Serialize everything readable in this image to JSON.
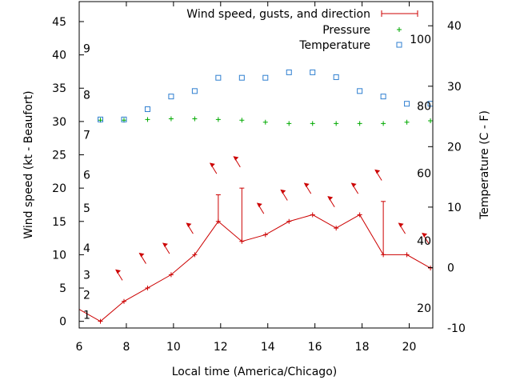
{
  "chart_data": {
    "type": "line",
    "xlabel": "Local time (America/Chicago)",
    "ylabel_left": "Wind speed (kt - Beaufort)",
    "ylabel_right": "Temperature (C - F)",
    "xlim": [
      6,
      21
    ],
    "ylim_left": [
      -1,
      48
    ],
    "ylim_right": [
      -10,
      44
    ],
    "x_ticks": [
      6,
      8,
      10,
      12,
      14,
      16,
      18,
      20
    ],
    "y_ticks_left": [
      0,
      5,
      10,
      15,
      20,
      25,
      30,
      35,
      40,
      45
    ],
    "y_ticks_right": [
      -10,
      0,
      10,
      20,
      30,
      40
    ],
    "beaufort_labels": [
      {
        "label": "1",
        "kt": 1
      },
      {
        "label": "2",
        "kt": 4
      },
      {
        "label": "3",
        "kt": 7
      },
      {
        "label": "4",
        "kt": 11
      },
      {
        "label": "5",
        "kt": 17
      },
      {
        "label": "6",
        "kt": 22
      },
      {
        "label": "7",
        "kt": 28
      },
      {
        "label": "8",
        "kt": 34
      },
      {
        "label": "9",
        "kt": 41
      }
    ],
    "fahrenheit_labels": [
      {
        "label": "20",
        "c": -6.7
      },
      {
        "label": "40",
        "c": 4.4
      },
      {
        "label": "60",
        "c": 15.6
      },
      {
        "label": "80",
        "c": 26.7
      },
      {
        "label": "100",
        "c": 37.8
      }
    ],
    "legend_position": "top-right",
    "series": [
      {
        "name": "Wind speed, gusts, and direction",
        "color": "#cc0000",
        "x": [
          5.9,
          6.9,
          7.9,
          8.9,
          9.9,
          10.9,
          11.9,
          12.9,
          13.9,
          14.9,
          15.9,
          16.9,
          17.9,
          18.9,
          19.9,
          20.9
        ],
        "values": [
          2,
          0,
          3,
          5,
          7,
          10,
          15,
          12,
          13,
          15,
          16,
          14,
          16,
          10,
          10,
          8
        ],
        "gusts": [
          null,
          null,
          null,
          null,
          null,
          null,
          19,
          20,
          null,
          null,
          null,
          null,
          null,
          18,
          null,
          null
        ]
      },
      {
        "name": "Pressure",
        "color": "#00aa00",
        "x": [
          6.9,
          7.9,
          8.9,
          9.9,
          10.9,
          11.9,
          12.9,
          13.9,
          14.9,
          15.9,
          16.9,
          17.9,
          18.9,
          19.9,
          20.9
        ],
        "values": [
          30.2,
          30.2,
          30.3,
          30.4,
          30.4,
          30.3,
          30.2,
          29.9,
          29.7,
          29.7,
          29.7,
          29.7,
          29.7,
          29.9,
          30.1
        ]
      },
      {
        "name": "Temperature",
        "color": "#2f7fd0",
        "x": [
          6.9,
          7.9,
          8.9,
          9.9,
          10.9,
          11.9,
          12.9,
          13.9,
          14.9,
          15.9,
          16.9,
          17.9,
          18.9,
          19.9,
          20.9
        ],
        "values": [
          24.5,
          24.5,
          26.2,
          28.3,
          29.2,
          31.4,
          31.4,
          31.4,
          32.3,
          32.3,
          31.5,
          29.2,
          28.3,
          27.1,
          27.1
        ]
      }
    ],
    "wind_direction_arrows": [
      {
        "x": 7.9,
        "kt": 7
      },
      {
        "x": 8.9,
        "kt": 9.5
      },
      {
        "x": 9.9,
        "kt": 11
      },
      {
        "x": 10.9,
        "kt": 14
      },
      {
        "x": 11.9,
        "kt": 23
      },
      {
        "x": 12.9,
        "kt": 24
      },
      {
        "x": 13.9,
        "kt": 17
      },
      {
        "x": 14.9,
        "kt": 19
      },
      {
        "x": 15.9,
        "kt": 20
      },
      {
        "x": 16.9,
        "kt": 18
      },
      {
        "x": 17.9,
        "kt": 20
      },
      {
        "x": 18.9,
        "kt": 22
      },
      {
        "x": 19.9,
        "kt": 14
      },
      {
        "x": 20.9,
        "kt": 12.5
      }
    ]
  }
}
